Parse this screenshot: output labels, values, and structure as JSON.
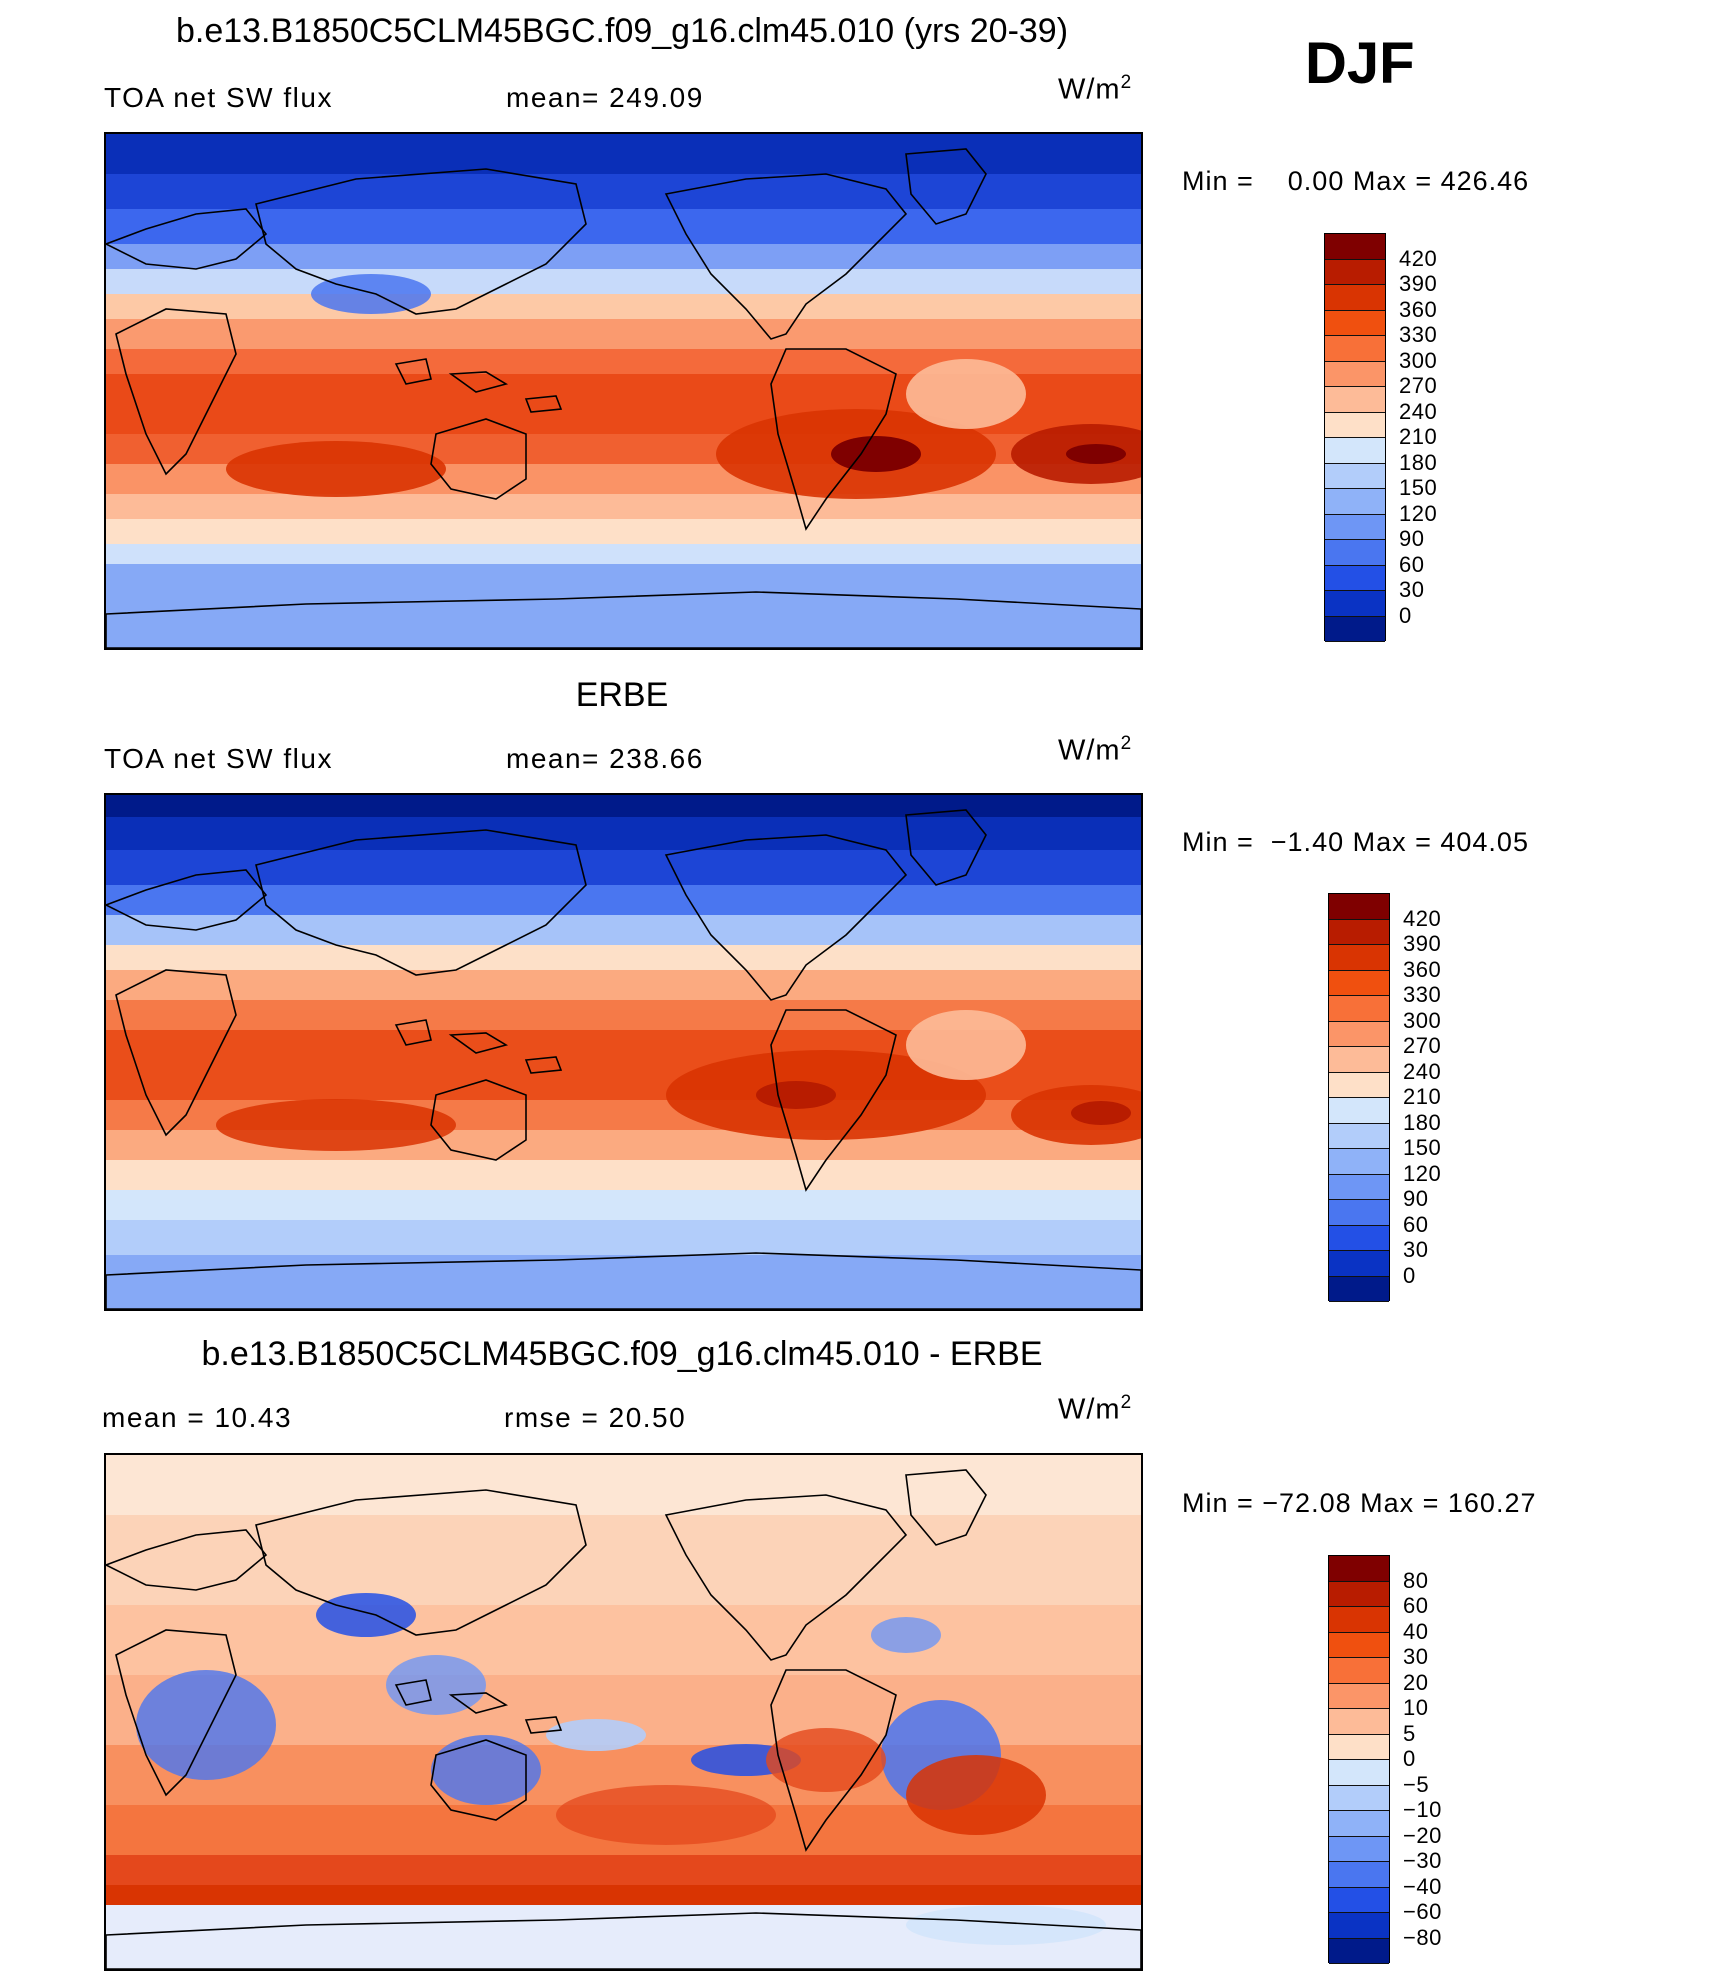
{
  "season": "DJF",
  "units_base": "W/m",
  "units_exp": "2",
  "panels": [
    {
      "title": "b.e13.B1850C5CLM45BGC.f09_g16.clm45.010 (yrs 20-39)",
      "left_text": "TOA net SW flux",
      "right_text": "mean= 249.09",
      "minmax": "Min =    0.00 Max = 426.46",
      "map_variant": "model",
      "colorbar_levels": [
        "420",
        "390",
        "360",
        "330",
        "300",
        "270",
        "240",
        "210",
        "180",
        "150",
        "120",
        "90",
        "60",
        "30",
        "0"
      ],
      "colorbar_colors": [
        "#7f0000",
        "#b81c00",
        "#d93402",
        "#f0500f",
        "#f87038",
        "#fb9568",
        "#fdbb98",
        "#fee0c8",
        "#d3e6fb",
        "#b2cdfa",
        "#8fb2f8",
        "#6e96f5",
        "#4a76f0",
        "#2350e6",
        "#0a33c4",
        "#001a8a"
      ]
    },
    {
      "title": "ERBE",
      "left_text": "TOA net SW flux",
      "right_text": "mean= 238.66",
      "minmax": "Min =  −1.40 Max = 404.05",
      "map_variant": "obs",
      "colorbar_levels": [
        "420",
        "390",
        "360",
        "330",
        "300",
        "270",
        "240",
        "210",
        "180",
        "150",
        "120",
        "90",
        "60",
        "30",
        "0"
      ],
      "colorbar_colors": [
        "#7f0000",
        "#b81c00",
        "#d93402",
        "#f0500f",
        "#f87038",
        "#fb9568",
        "#fdbb98",
        "#fee0c8",
        "#d3e6fb",
        "#b2cdfa",
        "#8fb2f8",
        "#6e96f5",
        "#4a76f0",
        "#2350e6",
        "#0a33c4",
        "#001a8a"
      ]
    },
    {
      "title": "b.e13.B1850C5CLM45BGC.f09_g16.clm45.010 - ERBE",
      "left_text": "mean =   10.43",
      "right_text": "rmse =   20.50",
      "minmax": "Min = −72.08 Max = 160.27",
      "map_variant": "diff",
      "colorbar_levels": [
        "80",
        "60",
        "40",
        "30",
        "20",
        "10",
        "5",
        "0",
        "−5",
        "−10",
        "−20",
        "−30",
        "−40",
        "−60",
        "−80"
      ],
      "colorbar_colors": [
        "#7f0000",
        "#b81c00",
        "#d93402",
        "#f0500f",
        "#f87038",
        "#fb9568",
        "#fdbb98",
        "#fee0c8",
        "#d3e6fb",
        "#b2cdfa",
        "#8fb2f8",
        "#6e96f5",
        "#4a76f0",
        "#2350e6",
        "#0a33c4",
        "#001a8a"
      ]
    }
  ]
}
